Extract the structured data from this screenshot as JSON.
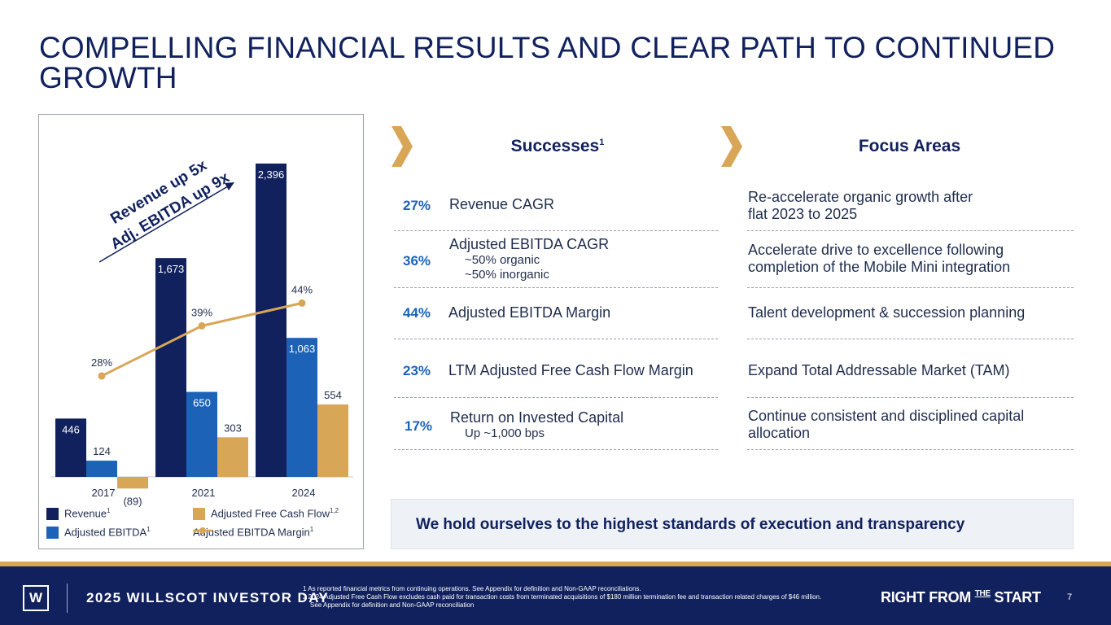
{
  "title": "COMPELLING FINANCIAL RESULTS AND CLEAR PATH TO CONTINUED GROWTH",
  "chart_data": {
    "type": "bar",
    "categories": [
      "2017",
      "2021",
      "2024"
    ],
    "series": [
      {
        "name": "Revenue",
        "values": [
          446,
          1673,
          2396
        ],
        "color": "#11215e"
      },
      {
        "name": "Adjusted EBITDA",
        "values": [
          124,
          650,
          1063
        ],
        "color": "#1c63b8"
      },
      {
        "name": "Adjusted Free Cash Flow",
        "values": [
          -89,
          303,
          554
        ],
        "color": "#d8a657"
      }
    ],
    "line_series": {
      "name": "Adjusted EBITDA Margin",
      "values": [
        28,
        39,
        44
      ],
      "labels": [
        "28%",
        "39%",
        "44%"
      ],
      "color": "#d8a657"
    },
    "bar_labels": [
      [
        "446",
        "1,673",
        "2,396"
      ],
      [
        "124",
        "650",
        "1,063"
      ],
      [
        "(89)",
        "303",
        "554"
      ]
    ],
    "annotation": [
      "Revenue up 5x",
      "Adj. EBITDA up 9x"
    ]
  },
  "legend": [
    {
      "label": "Revenue",
      "sup": "1",
      "color": "#11215e",
      "kind": "box"
    },
    {
      "label": "Adjusted Free Cash Flow",
      "sup": "1,2",
      "color": "#d8a657",
      "kind": "box"
    },
    {
      "label": "Adjusted EBITDA",
      "sup": "1",
      "color": "#1c63b8",
      "kind": "box"
    },
    {
      "label": "Adjusted EBITDA Margin",
      "sup": "1",
      "color": "#d8a657",
      "kind": "line"
    }
  ],
  "successes": {
    "heading": "Successes",
    "sup": "1",
    "rows": [
      {
        "pct": "27%",
        "label": "Revenue CAGR",
        "subs": []
      },
      {
        "pct": "36%",
        "label": "Adjusted EBITDA CAGR",
        "subs": [
          "~50% organic",
          "~50% inorganic"
        ]
      },
      {
        "pct": "44%",
        "label": "Adjusted EBITDA Margin",
        "subs": []
      },
      {
        "pct": "23%",
        "label": "LTM Adjusted Free Cash Flow Margin",
        "subs": []
      },
      {
        "pct": "17%",
        "label": "Return on Invested Capital",
        "subs": [
          "Up ~1,000 bps"
        ]
      }
    ]
  },
  "focus": {
    "heading": "Focus Areas",
    "rows": [
      [
        "Re-accelerate organic growth after",
        "flat 2023 to 2025"
      ],
      [
        "Accelerate drive to excellence following",
        "completion of the Mobile Mini integration"
      ],
      [
        "Talent development & succession planning"
      ],
      [
        "Expand Total Addressable Market (TAM)"
      ],
      [
        "Continue consistent and disciplined capital",
        "allocation"
      ]
    ]
  },
  "banner": "We hold ourselves to the highest standards of execution and transparency",
  "footer": {
    "logo": "W",
    "event": "2025 WILLSCOT INVESTOR DAY",
    "notes": [
      "1 As reported financial metrics from continuing operations. See Appendix for definition and Non-GAAP reconciliations.",
      "2 2024 Adjusted Free Cash Flow excludes cash paid for transaction costs from terminated acquisitions of $180 million termination fee and transaction related charges of $46 million.",
      "See Appendix for definition and Non-GAAP reconciliation"
    ],
    "tagline_a": "RIGHT FROM ",
    "tagline_the": "THE",
    "tagline_b": " START",
    "page": "7"
  }
}
